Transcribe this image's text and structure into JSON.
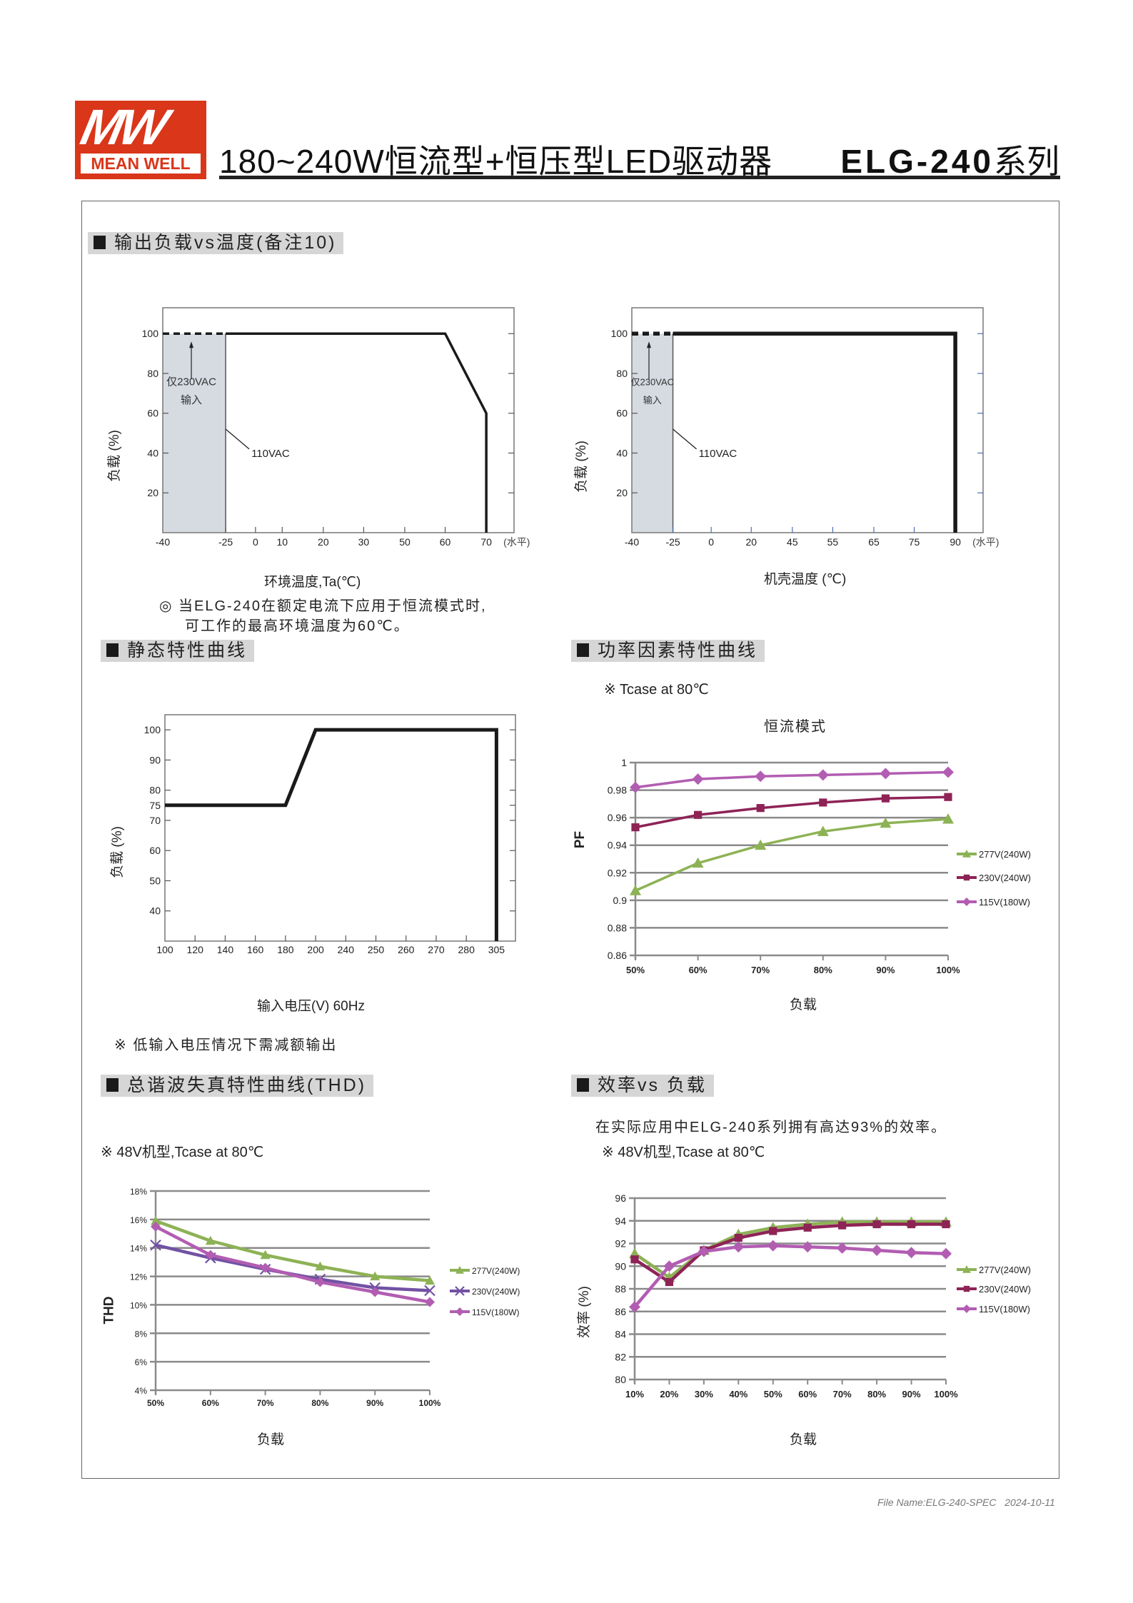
{
  "header": {
    "logo_text": "MW MEAN WELL",
    "title": "180~240W恒流型+恒压型LED驱动器",
    "series_model": "ELG-240",
    "series_suffix": "系列"
  },
  "colors": {
    "brand_red": "#d9361a",
    "green_277v": "#8db255",
    "maroon_230v": "#8e2356",
    "pink_115v": "#b25db2",
    "purple_230v_thd": "#7152a3",
    "shade": "#d5dbe1"
  },
  "sections": {
    "derating": "输出负载vs温度(备注10)",
    "static": "静态特性曲线",
    "pf": "功率因素特性曲线",
    "thd": "总谐波失真特性曲线(THD)",
    "efficiency": "效率vs 负载"
  },
  "notes": {
    "derating_line1": "◎ 当ELG-240在额定电流下应用于恒流模式时,",
    "derating_line2": "可工作的最高环境温度为60℃。",
    "static": "※ 低输入电压情况下需减额输出",
    "pf": "※ Tcase at 80℃",
    "thd": "※ 48V机型,Tcase at 80℃",
    "eff_line1": "在实际应用中ELG-240系列拥有高达93%的效率。",
    "eff_line2": "※ 48V机型,Tcase at 80℃"
  },
  "footer": {
    "file_name": "File Name:ELG-240-SPEC",
    "date": "2024-10-11"
  },
  "chart_data": [
    {
      "type": "line",
      "xlabel": "环境温度,Ta(℃)",
      "ylabel": "负载 (%)",
      "x_unit_note": "(水平)",
      "x_ticks": [
        "-40",
        "-25",
        "0",
        "10",
        "20",
        "30",
        "50",
        "60",
        "70"
      ],
      "y_ticks": [
        "20",
        "40",
        "60",
        "80",
        "100"
      ],
      "ylim": [
        0,
        113
      ],
      "shaded_region_x": [
        -40,
        -25
      ],
      "series": [
        {
          "style": "dashed",
          "x": [
            -40,
            -25
          ],
          "y": [
            100,
            100
          ]
        },
        {
          "style": "solid",
          "x": [
            -25,
            60,
            70,
            70
          ],
          "y": [
            100,
            100,
            60,
            0
          ]
        }
      ],
      "annotations": [
        "仅230VAC",
        "输入",
        "110VAC"
      ]
    },
    {
      "type": "line",
      "xlabel": "机壳温度 (℃)",
      "ylabel": "负载 (%)",
      "x_unit_note": "(水平)",
      "x_ticks": [
        "-40",
        "-25",
        "0",
        "20",
        "45",
        "55",
        "65",
        "75",
        "90"
      ],
      "y_ticks": [
        "20",
        "40",
        "60",
        "80",
        "100"
      ],
      "ylim": [
        0,
        113
      ],
      "shaded_region_x": [
        -40,
        -25
      ],
      "series": [
        {
          "style": "dashed",
          "x": [
            -40,
            -25
          ],
          "y": [
            100,
            100
          ]
        },
        {
          "style": "solid",
          "x": [
            -25,
            90,
            90
          ],
          "y": [
            100,
            100,
            0
          ]
        }
      ],
      "annotations": [
        "仅230VAC",
        "输入",
        "110VAC"
      ]
    },
    {
      "type": "line",
      "xlabel": "输入电压(V) 60Hz",
      "ylabel": "负载 (%)",
      "x_ticks": [
        "100",
        "120",
        "140",
        "160",
        "180",
        "200",
        "240",
        "250",
        "260",
        "270",
        "280",
        "305"
      ],
      "y_ticks": [
        "100",
        "90",
        "80",
        "75",
        "70",
        "60",
        "50",
        "40"
      ],
      "ylim": [
        30,
        105
      ],
      "series": [
        {
          "style": "solid",
          "x": [
            100,
            180,
            200,
            305,
            305
          ],
          "y": [
            75,
            75,
            100,
            100,
            30
          ]
        }
      ]
    },
    {
      "type": "line",
      "title": "恒流模式",
      "xlabel": "负载",
      "ylabel": "PF",
      "categories": [
        "50%",
        "60%",
        "70%",
        "80%",
        "90%",
        "100%"
      ],
      "y_ticks": [
        "1",
        "0.98",
        "0.96",
        "0.94",
        "0.92",
        "0.9",
        "0.88",
        "0.86"
      ],
      "ylim": [
        0.86,
        1
      ],
      "grid": true,
      "legend": "right",
      "series": [
        {
          "name": "277V(240W)",
          "marker": "triangle",
          "color": "#8db255",
          "values": [
            0.907,
            0.927,
            0.94,
            0.95,
            0.956,
            0.959
          ]
        },
        {
          "name": "230V(240W)",
          "marker": "square",
          "color": "#8e2356",
          "values": [
            0.953,
            0.962,
            0.967,
            0.971,
            0.974,
            0.975
          ]
        },
        {
          "name": "115V(180W)",
          "marker": "diamond",
          "color": "#b25db2",
          "values": [
            0.982,
            0.988,
            0.99,
            0.991,
            0.992,
            0.993
          ]
        }
      ]
    },
    {
      "type": "line",
      "xlabel": "负载",
      "ylabel": "THD",
      "categories": [
        "50%",
        "60%",
        "70%",
        "80%",
        "90%",
        "100%"
      ],
      "y_ticks": [
        "18%",
        "16%",
        "14%",
        "12%",
        "10%",
        "8%",
        "6%",
        "4%"
      ],
      "ylim": [
        4,
        18
      ],
      "grid": true,
      "legend": "right",
      "series": [
        {
          "name": "277V(240W)",
          "marker": "triangle",
          "color": "#8db255",
          "values": [
            15.9,
            14.5,
            13.5,
            12.7,
            12.0,
            11.7
          ]
        },
        {
          "name": "230V(240W)",
          "marker": "x",
          "color": "#7152a3",
          "values": [
            14.2,
            13.3,
            12.5,
            11.8,
            11.2,
            11.0
          ]
        },
        {
          "name": "115V(180W)",
          "marker": "diamond",
          "color": "#b25db2",
          "values": [
            15.5,
            13.5,
            12.6,
            11.6,
            10.9,
            10.2
          ]
        }
      ]
    },
    {
      "type": "line",
      "xlabel": "负载",
      "ylabel": "效率 (%)",
      "categories": [
        "10%",
        "20%",
        "30%",
        "40%",
        "50%",
        "60%",
        "70%",
        "80%",
        "90%",
        "100%"
      ],
      "y_ticks": [
        "96",
        "94",
        "92",
        "90",
        "88",
        "86",
        "84",
        "82",
        "80"
      ],
      "ylim": [
        80,
        96
      ],
      "grid": true,
      "legend": "right",
      "series": [
        {
          "name": "277V(240W)",
          "marker": "triangle",
          "color": "#8db255",
          "values": [
            91.1,
            89.0,
            91.4,
            92.8,
            93.4,
            93.7,
            93.9,
            93.9,
            93.9,
            93.9
          ]
        },
        {
          "name": "230V(240W)",
          "marker": "square",
          "color": "#8e2356",
          "values": [
            90.6,
            88.6,
            91.4,
            92.5,
            93.1,
            93.4,
            93.6,
            93.7,
            93.7,
            93.7
          ]
        },
        {
          "name": "115V(180W)",
          "marker": "diamond",
          "color": "#b25db2",
          "values": [
            86.4,
            90.0,
            91.3,
            91.7,
            91.8,
            91.7,
            91.6,
            91.4,
            91.2,
            91.1
          ]
        }
      ]
    }
  ]
}
